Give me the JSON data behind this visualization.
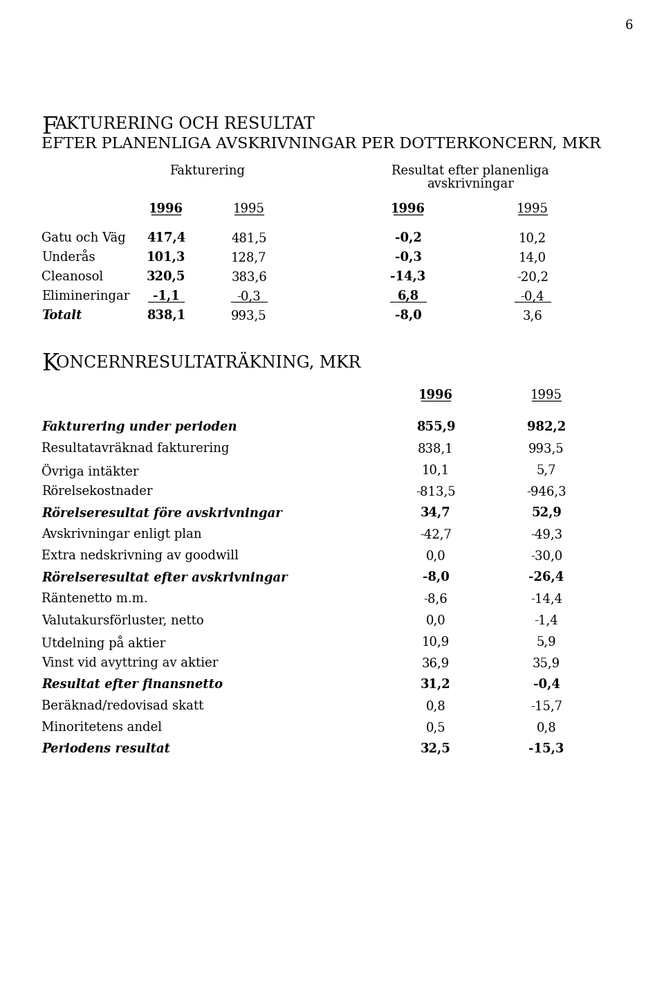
{
  "page_number": "6",
  "section1_header_col1": "Fakturering",
  "section1_header_col2a": "Resultat efter planenliga",
  "section1_header_col2b": "avskrivningar",
  "section1_years": [
    "1996",
    "1995",
    "1996",
    "1995"
  ],
  "section1_years_bold": [
    true,
    false,
    true,
    false
  ],
  "section1_rows": [
    {
      "label": "Gatu och Väg",
      "v1": "417,4",
      "v2": "481,5",
      "v3": "-0,2",
      "v4": "10,2",
      "bold1": true,
      "bold3": true,
      "underline": false,
      "italic_label": false
    },
    {
      "label": "Underås",
      "v1": "101,3",
      "v2": "128,7",
      "v3": "-0,3",
      "v4": "14,0",
      "bold1": true,
      "bold3": true,
      "underline": false,
      "italic_label": false
    },
    {
      "label": "Cleanosol",
      "v1": "320,5",
      "v2": "383,6",
      "v3": "-14,3",
      "v4": "-20,2",
      "bold1": true,
      "bold3": true,
      "underline": false,
      "italic_label": false
    },
    {
      "label": "Elimineringar",
      "v1": "-1,1",
      "v2": "-0,3",
      "v3": "6,8",
      "v4": "-0,4",
      "bold1": true,
      "bold3": true,
      "underline": true,
      "italic_label": false
    },
    {
      "label": "Totalt",
      "v1": "838,1",
      "v2": "993,5",
      "v3": "-8,0",
      "v4": "3,6",
      "bold1": true,
      "bold3": true,
      "underline": false,
      "italic_label": true
    }
  ],
  "section2_title_big": "K",
  "section2_title_rest": "ONCERNRESULTATRÄKNING, MKR",
  "section2_years": [
    "1996",
    "1995"
  ],
  "section2_years_bold": [
    true,
    false
  ],
  "section2_rows": [
    {
      "label": "Fakturering under perioden",
      "v1": "855,9",
      "v2": "982,2",
      "bold": true,
      "italic": true
    },
    {
      "label": "Resultatavräknad fakturering",
      "v1": "838,1",
      "v2": "993,5",
      "bold": false,
      "italic": false
    },
    {
      "label": "Övriga intäkter",
      "v1": "10,1",
      "v2": "5,7",
      "bold": false,
      "italic": false
    },
    {
      "label": "Rörelsekostnader",
      "v1": "-813,5",
      "v2": "-946,3",
      "bold": false,
      "italic": false
    },
    {
      "label": "Rörelseresultat före avskrivningar",
      "v1": "34,7",
      "v2": "52,9",
      "bold": true,
      "italic": true
    },
    {
      "label": "Avskrivningar enligt plan",
      "v1": "-42,7",
      "v2": "-49,3",
      "bold": false,
      "italic": false
    },
    {
      "label": "Extra nedskrivning av goodwill",
      "v1": "0,0",
      "v2": "-30,0",
      "bold": false,
      "italic": false
    },
    {
      "label": "Rörelseresultat efter avskrivningar",
      "v1": "-8,0",
      "v2": "-26,4",
      "bold": true,
      "italic": true
    },
    {
      "label": "Räntenetto m.m.",
      "v1": "-8,6",
      "v2": "-14,4",
      "bold": false,
      "italic": false
    },
    {
      "label": "Valutakursförluster, netto",
      "v1": "0,0",
      "v2": "-1,4",
      "bold": false,
      "italic": false
    },
    {
      "label": "Utdelning på aktier",
      "v1": "10,9",
      "v2": "5,9",
      "bold": false,
      "italic": false
    },
    {
      "label": "Vinst vid avyttring av aktier",
      "v1": "36,9",
      "v2": "35,9",
      "bold": false,
      "italic": false
    },
    {
      "label": "Resultat efter finansnetto",
      "v1": "31,2",
      "v2": "-0,4",
      "bold": true,
      "italic": true
    },
    {
      "label": "Beräknad/redovisad skatt",
      "v1": "0,8",
      "v2": "-15,7",
      "bold": false,
      "italic": false
    },
    {
      "label": "Minoritetens andel",
      "v1": "0,5",
      "v2": "0,8",
      "bold": false,
      "italic": false
    },
    {
      "label": "Periodens resultat",
      "v1": "32,5",
      "v2": "-15,3",
      "bold": true,
      "italic": true
    }
  ],
  "bg_color": "#ffffff",
  "text_color": "#000000"
}
